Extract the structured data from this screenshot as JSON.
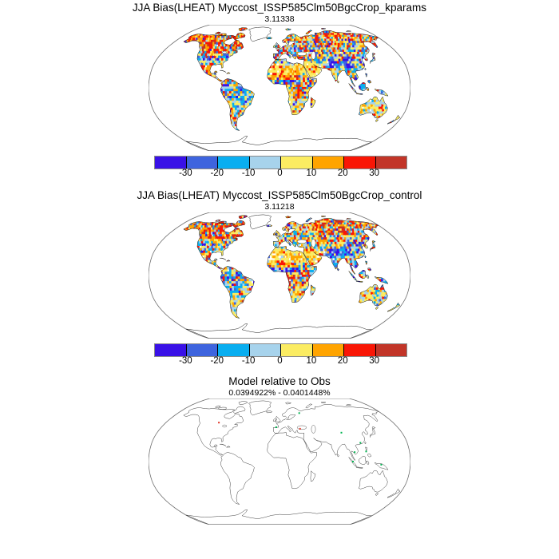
{
  "figure": {
    "background": "#ffffff",
    "panels": [
      {
        "id": "kparams",
        "title": "JJA Bias(LHEAT) Myccost_ISSP585Clm50BgcCrop_kparams",
        "subtitle": "3.11338"
      },
      {
        "id": "control",
        "title": "JJA Bias(LHEAT) Myccost_ISSP585Clm50BgcCrop_control",
        "subtitle": "3.11218"
      },
      {
        "id": "relative",
        "title": "Model relative to Obs",
        "subtitle": "0.0394922% - 0.0401448%"
      }
    ],
    "colorbar": {
      "tick_labels": [
        "-30",
        "-20",
        "-10",
        "0",
        "10",
        "20",
        "30"
      ],
      "colors": [
        "#3911E7",
        "#3E64DE",
        "#09AEF0",
        "#A7D3EC",
        "#FBEC62",
        "#FFA400",
        "#F91605",
        "#C23528"
      ],
      "outline_color": "#8a8a8a",
      "divider_color": "#000000"
    },
    "map": {
      "projection": "Robinson",
      "outline_color": "#6f6f6f",
      "coast_color": "#1c1c1c",
      "land_fill": "#ffffff",
      "dot_colors": {
        "green": "#00b450",
        "red": "#e03424"
      }
    }
  },
  "chart_data": [
    {
      "type": "heatmap",
      "subtype": "global-bias-map",
      "projection": "Robinson",
      "title": "JJA Bias(LHEAT) Myccost_ISSP585Clm50BgcCrop_kparams",
      "annotation": "3.11338",
      "legend_position": "bottom",
      "colorbar_tick_labels": [
        "-30",
        "-20",
        "-10",
        "0",
        "10",
        "20",
        "30"
      ],
      "bin_colors": [
        "#3911E7",
        "#3E64DE",
        "#09AEF0",
        "#A7D3EC",
        "#FBEC62",
        "#FFA400",
        "#F91605",
        "#C23528"
      ],
      "bins": [
        "<-30",
        "-30 to -20",
        "-20 to -10",
        "-10 to 0",
        "0 to 10",
        "10 to 20",
        "20 to 30",
        ">30"
      ],
      "notes": "gridded JJA latent-heat bias over land; Greenland and Antarctica masked white"
    },
    {
      "type": "heatmap",
      "subtype": "global-bias-map",
      "projection": "Robinson",
      "title": "JJA Bias(LHEAT) Myccost_ISSP585Clm50BgcCrop_control",
      "annotation": "3.11218",
      "legend_position": "bottom",
      "colorbar_tick_labels": [
        "-30",
        "-20",
        "-10",
        "0",
        "10",
        "20",
        "30"
      ],
      "bin_colors": [
        "#3911E7",
        "#3E64DE",
        "#09AEF0",
        "#A7D3EC",
        "#FBEC62",
        "#FFA400",
        "#F91605",
        "#C23528"
      ],
      "bins": [
        "<-30",
        "-30 to -20",
        "-20 to -10",
        "-10 to 0",
        "0 to 10",
        "10 to 20",
        "20 to 30",
        ">30"
      ],
      "notes": "gridded JJA latent-heat bias over land; Greenland and Antarctica masked white"
    },
    {
      "type": "heatmap",
      "subtype": "outline-map",
      "projection": "Robinson",
      "title": "Model relative to Obs",
      "annotation": "0.0394922% - 0.0401448%",
      "notes": "coastline outlines only with a few isolated green/red grid cells"
    }
  ]
}
